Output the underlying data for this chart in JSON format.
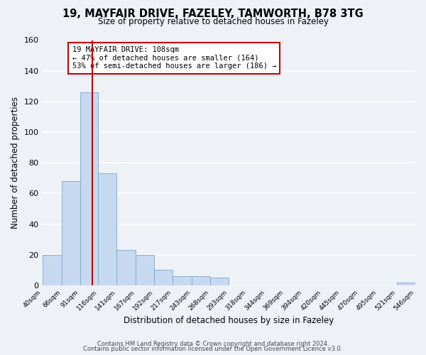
{
  "title": "19, MAYFAIR DRIVE, FAZELEY, TAMWORTH, B78 3TG",
  "subtitle": "Size of property relative to detached houses in Fazeley",
  "xlabel": "Distribution of detached houses by size in Fazeley",
  "ylabel": "Number of detached properties",
  "bin_edges": [
    40,
    66,
    91,
    116,
    141,
    167,
    192,
    217,
    243,
    268,
    293,
    318,
    344,
    369,
    394,
    420,
    445,
    470,
    495,
    521,
    546
  ],
  "bar_heights": [
    20,
    68,
    126,
    73,
    23,
    20,
    10,
    6,
    6,
    5,
    0,
    0,
    0,
    0,
    0,
    0,
    0,
    0,
    0,
    2
  ],
  "bar_color": "#c6d9f0",
  "bar_edge_color": "#7ba7cc",
  "property_value": 108,
  "vline_color": "#cc0000",
  "annotation_line1": "19 MAYFAIR DRIVE: 108sqm",
  "annotation_line2": "← 47% of detached houses are smaller (164)",
  "annotation_line3": "53% of semi-detached houses are larger (186) →",
  "annotation_box_edgecolor": "#cc0000",
  "annotation_box_facecolor": "#ffffff",
  "ylim": [
    0,
    160
  ],
  "yticks": [
    0,
    20,
    40,
    60,
    80,
    100,
    120,
    140,
    160
  ],
  "tick_labels": [
    "40sqm",
    "66sqm",
    "91sqm",
    "116sqm",
    "141sqm",
    "167sqm",
    "192sqm",
    "217sqm",
    "243sqm",
    "268sqm",
    "293sqm",
    "318sqm",
    "344sqm",
    "369sqm",
    "394sqm",
    "420sqm",
    "445sqm",
    "470sqm",
    "495sqm",
    "521sqm",
    "546sqm"
  ],
  "footer1": "Contains HM Land Registry data © Crown copyright and database right 2024.",
  "footer2": "Contains public sector information licensed under the Open Government Licence v3.0.",
  "bg_color": "#eef2f7",
  "grid_color": "#ffffff",
  "title_fontsize": 10.5,
  "subtitle_fontsize": 8.5
}
